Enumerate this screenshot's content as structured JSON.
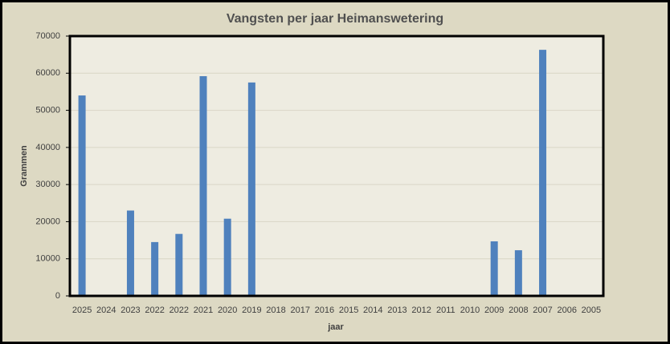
{
  "chart_data": {
    "type": "bar",
    "title": "Vangsten per jaar Heimanswetering",
    "x_label": "jaar",
    "y_label": "Grammen",
    "categories": [
      "2025",
      "2024",
      "2023",
      "2022",
      "2022",
      "2021",
      "2020",
      "2019",
      "2018",
      "2017",
      "2016",
      "2015",
      "2014",
      "2013",
      "2012",
      "2011",
      "2010",
      "2009",
      "2008",
      "2007",
      "2006",
      "2005"
    ],
    "values": [
      54000,
      0,
      23000,
      14500,
      16700,
      59200,
      20800,
      57500,
      0,
      0,
      0,
      0,
      0,
      0,
      0,
      0,
      0,
      14700,
      12300,
      66300,
      0,
      0
    ],
    "color": "#4f81bd",
    "ylim": [
      0,
      70000
    ],
    "yticks": [
      0,
      10000,
      20000,
      30000,
      40000,
      50000,
      60000,
      70000
    ],
    "grid": true
  }
}
